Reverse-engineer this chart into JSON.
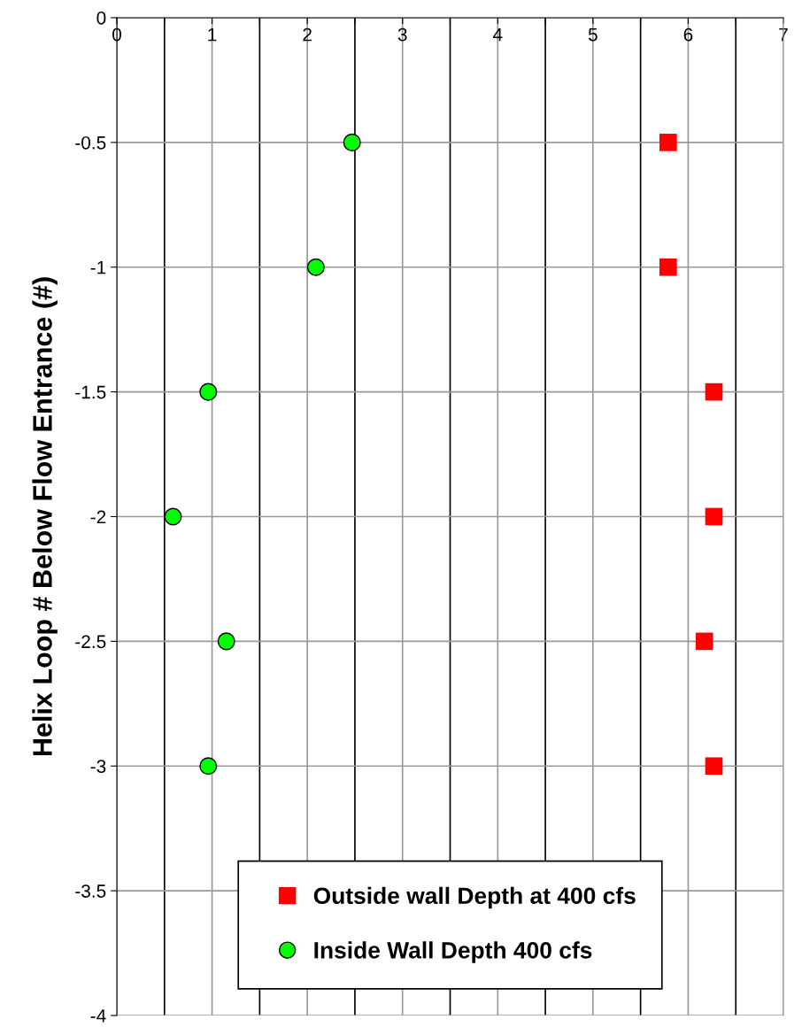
{
  "chart_data": {
    "type": "scatter",
    "ylabel": "Helix Loop # Below Flow Entrance (#)",
    "xlim": [
      0,
      7
    ],
    "xticks": [
      0,
      {
        "value": 0.5,
        "label": null
      },
      1,
      {
        "value": 1.5,
        "label": null
      },
      2,
      {
        "value": 2.5,
        "label": null
      },
      3,
      {
        "value": 3.5,
        "label": null
      },
      4,
      {
        "value": 4.5,
        "label": null
      },
      5,
      {
        "value": 5.5,
        "label": null
      },
      6,
      {
        "value": 6.5,
        "label": null
      },
      7
    ],
    "ylim": [
      -4,
      0
    ],
    "yticks": [
      -4,
      -3.5,
      -3,
      -2.5,
      -2,
      -1.5,
      -1,
      -0.5,
      0
    ],
    "grid": true,
    "legend": "bottom",
    "series": [
      {
        "name": "Outside wall Depth at 400 cfs",
        "color": "#ff0000",
        "marker": "square",
        "x": [
          5.79,
          5.79,
          6.27,
          6.27,
          6.17,
          6.27
        ],
        "values": [
          -0.5,
          -1,
          -1.5,
          -2,
          -2.5,
          -3
        ]
      },
      {
        "name": "Inside Wall Depth 400 cfs",
        "color": "#00ff00",
        "marker": "circle",
        "x": [
          2.47,
          2.09,
          0.96,
          0.59,
          1.15,
          0.96
        ],
        "values": [
          -0.5,
          -1,
          -1.5,
          -2,
          -2.5,
          -3
        ]
      }
    ]
  }
}
